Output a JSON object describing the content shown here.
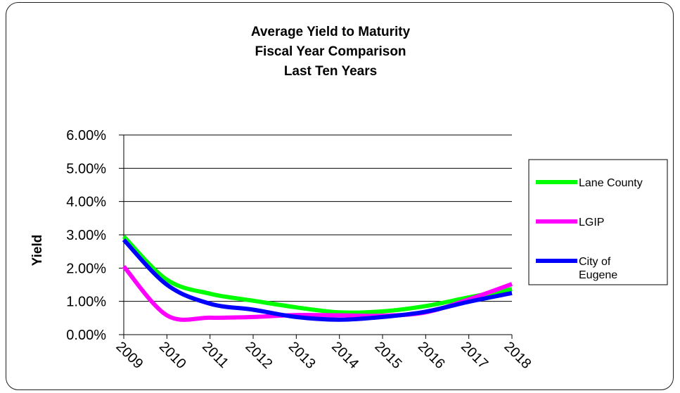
{
  "chart_data": {
    "type": "line",
    "title": [
      "Average Yield to Maturity",
      "Fiscal Year Comparison",
      "Last Ten Years"
    ],
    "xlabel": "",
    "ylabel": "Yield",
    "categories": [
      "2009",
      "2010",
      "2011",
      "2012",
      "2013",
      "2014",
      "2015",
      "2016",
      "2017",
      "2018"
    ],
    "ylim": [
      0,
      0.06
    ],
    "yticks": [
      "0.00%",
      "1.00%",
      "2.00%",
      "3.00%",
      "4.00%",
      "5.00%",
      "6.00%"
    ],
    "grid": true,
    "legend_position": "right",
    "series": [
      {
        "name": "Lane County",
        "color": "#00ff00",
        "values": [
          0.0295,
          0.0165,
          0.0123,
          0.0102,
          0.0082,
          0.0067,
          0.007,
          0.0086,
          0.0112,
          0.0137
        ]
      },
      {
        "name": "LGIP",
        "color": "#ff00ff",
        "values": [
          0.0205,
          0.0058,
          0.0051,
          0.0053,
          0.0059,
          0.0058,
          0.0057,
          0.0067,
          0.0106,
          0.0152
        ]
      },
      {
        "name": "City of Eugene",
        "color": "#0000ff",
        "values": [
          0.0285,
          0.015,
          0.0093,
          0.0075,
          0.0053,
          0.0045,
          0.0053,
          0.0069,
          0.0099,
          0.0125
        ]
      }
    ]
  }
}
